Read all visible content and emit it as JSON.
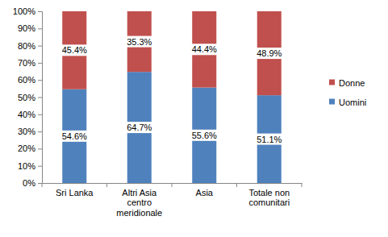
{
  "chart_data": {
    "type": "bar",
    "stacked": true,
    "data_labels": true,
    "legend": "right",
    "grid": false,
    "categories": [
      "Sri Lanka",
      "Altri Asia centro meridionale",
      "Asia",
      "Totale non comunitari"
    ],
    "series": [
      {
        "name": "Uomini",
        "color": "#4f81bd",
        "values": [
          54.6,
          64.7,
          55.6,
          51.1
        ],
        "value_labels": [
          "54.6%",
          "64.7%",
          "55.6%",
          "51.1%"
        ]
      },
      {
        "name": "Donne",
        "color": "#c0504d",
        "values": [
          45.4,
          35.3,
          44.4,
          48.9
        ],
        "value_labels": [
          "45.4%",
          "35.3%",
          "44.4%",
          "48.9%"
        ]
      }
    ],
    "ylim": [
      0,
      100
    ],
    "yticks": [
      {
        "value": 0,
        "label": "0%"
      },
      {
        "value": 10,
        "label": "10%"
      },
      {
        "value": 20,
        "label": "20%"
      },
      {
        "value": 30,
        "label": "30%"
      },
      {
        "value": 40,
        "label": "40%"
      },
      {
        "value": 50,
        "label": "50%"
      },
      {
        "value": 60,
        "label": "60%"
      },
      {
        "value": 70,
        "label": "70%"
      },
      {
        "value": 80,
        "label": "80%"
      },
      {
        "value": 90,
        "label": "90%"
      },
      {
        "value": 100,
        "label": "100%"
      }
    ]
  }
}
